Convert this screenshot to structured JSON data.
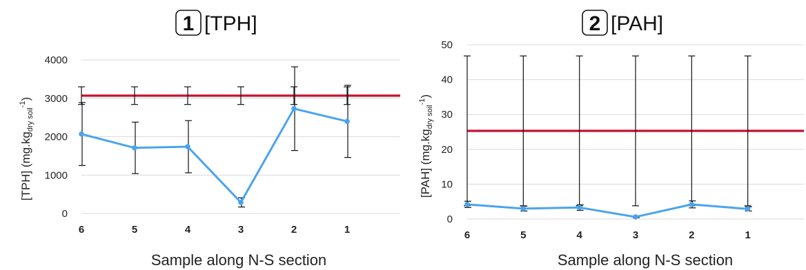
{
  "chart_data": [
    {
      "type": "line",
      "badge": "1",
      "title": "[TPH]",
      "xlabel": "Sample along N-S section",
      "ylabel_main": "[TPH] (mg.kg",
      "ylabel_sub": "dry soil",
      "ylabel_sup": "-1",
      "ylabel_close": ")",
      "categories": [
        "6",
        "5",
        "4",
        "3",
        "2",
        "1"
      ],
      "ylim": [
        0,
        4000
      ],
      "yticks": [
        "0",
        "1000",
        "2000",
        "3000",
        "4000"
      ],
      "grid": "horizontal",
      "series": [
        {
          "values": [
            2070,
            1710,
            1740,
            290,
            2730,
            2400
          ],
          "err_low": [
            820,
            670,
            680,
            120,
            1090,
            940
          ],
          "err_high": [
            820,
            670,
            680,
            120,
            1090,
            940
          ],
          "color": "#4aa3f0"
        }
      ],
      "reference_line": {
        "value": 3070,
        "err": 230,
        "color": "#c8102e"
      }
    },
    {
      "type": "line",
      "badge": "2",
      "title": "[PAH]",
      "xlabel": "Sample along N-S section",
      "ylabel_main": "[PAH] (mg.kg",
      "ylabel_sub": "dry soil",
      "ylabel_sup": "-1",
      "ylabel_close": ")",
      "categories": [
        "6",
        "5",
        "4",
        "3",
        "2",
        "1"
      ],
      "ylim": [
        0,
        50
      ],
      "yticks": [
        "0",
        "10",
        "20",
        "30",
        "40",
        "50"
      ],
      "grid": "horizontal",
      "series": [
        {
          "values": [
            4.2,
            3.0,
            3.3,
            0.6,
            4.2,
            2.9
          ],
          "err_low": [
            0.9,
            0.7,
            0.8,
            0.2,
            1.0,
            0.6
          ],
          "err_high": [
            0.9,
            0.7,
            0.8,
            0.2,
            1.0,
            0.6
          ],
          "color": "#4aa3f0"
        }
      ],
      "reference_line": {
        "value": 25.3,
        "err": 21.5,
        "color": "#c8102e"
      }
    }
  ]
}
